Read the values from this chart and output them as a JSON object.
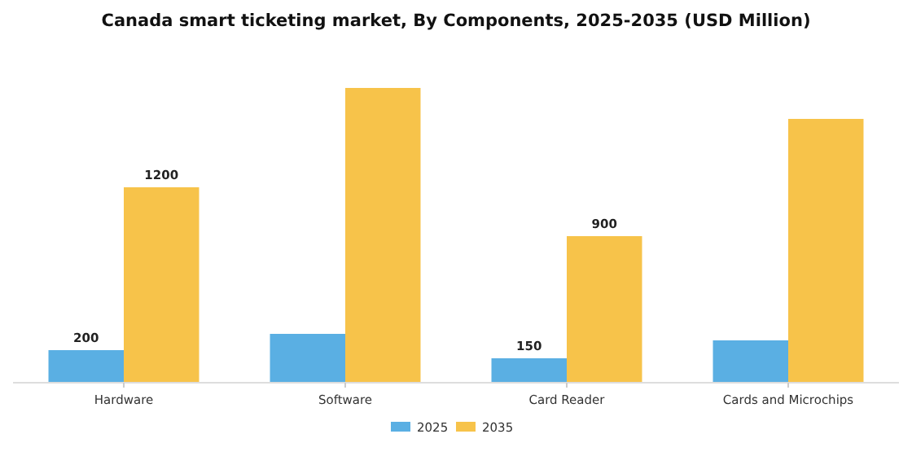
{
  "chart_data": {
    "type": "bar",
    "title": "Canada smart ticketing market, By Components, 2025-2035 (USD Million)",
    "categories": [
      "Hardware",
      "Software",
      "Card Reader",
      "Cards and Microchips"
    ],
    "legend": "bottom",
    "series": [
      {
        "name": "2025",
        "color": "#5aafe3",
        "values": [
          200,
          300,
          150,
          260
        ],
        "value_labels": [
          "200",
          null,
          "150",
          null
        ]
      },
      {
        "name": "2035",
        "color": "#f7c34a",
        "values": [
          1200,
          1810,
          900,
          1620
        ],
        "value_labels": [
          "1200",
          null,
          "900",
          null
        ]
      }
    ]
  }
}
